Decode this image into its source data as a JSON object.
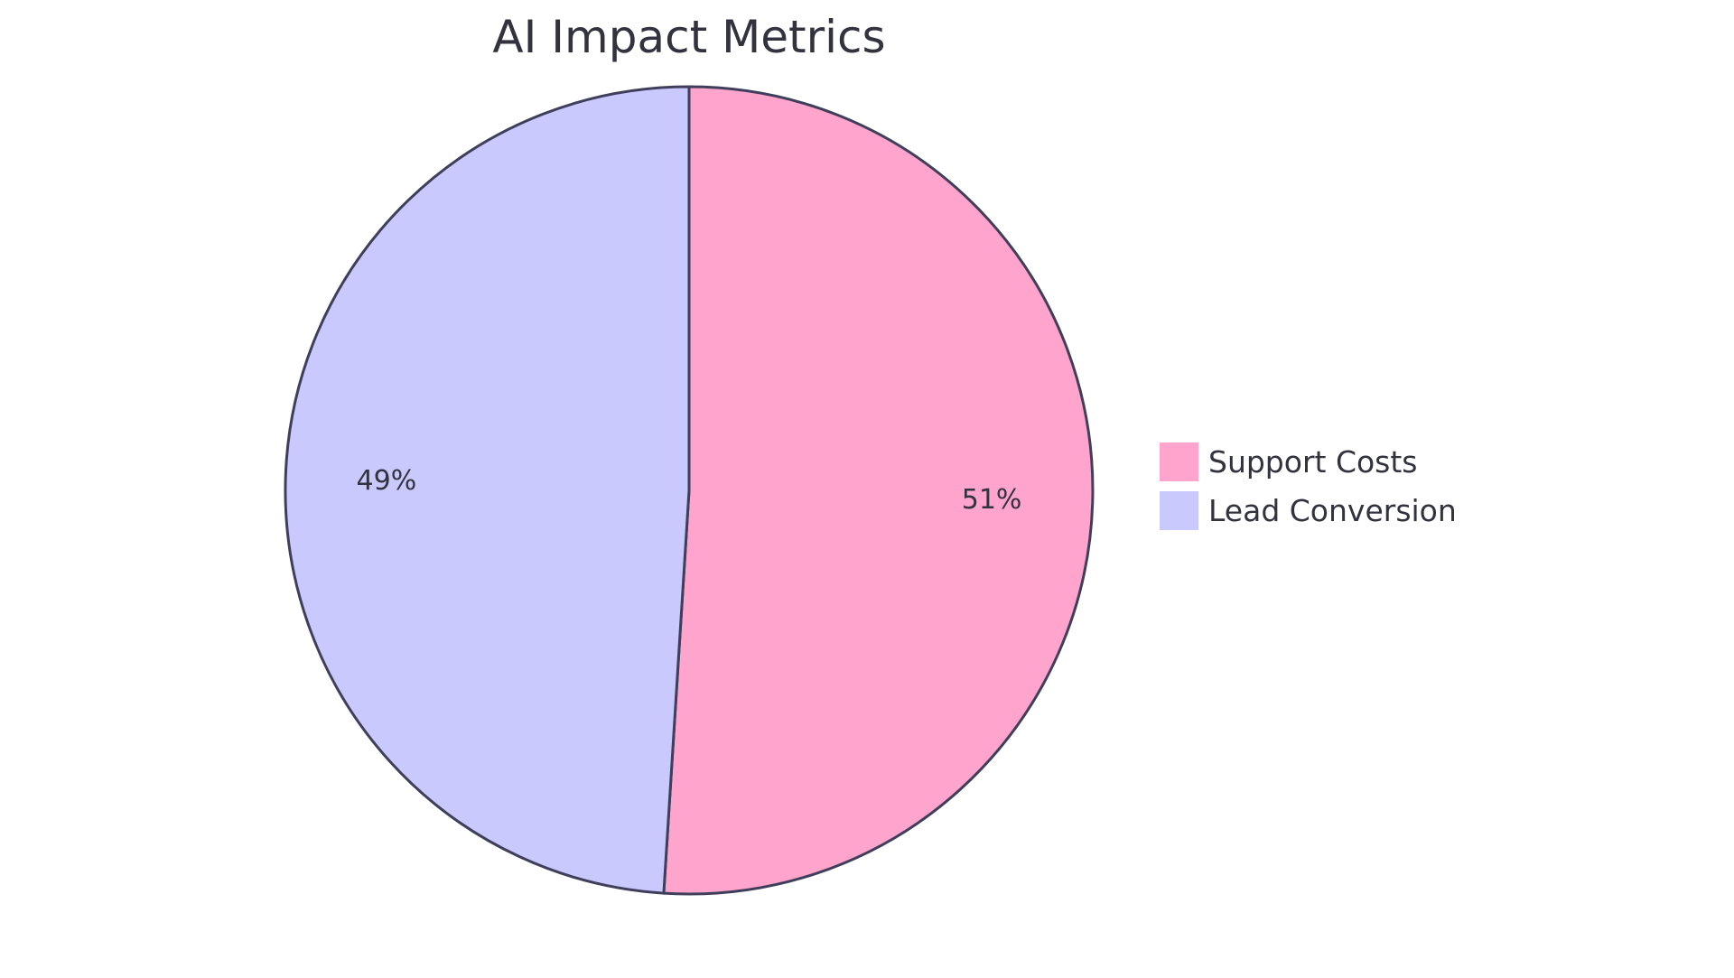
{
  "chart_data": {
    "type": "pie",
    "title": "AI Impact Metrics",
    "slices": [
      {
        "label": "Support Costs",
        "value": 51,
        "display": "51%",
        "color": "#FFA4CC"
      },
      {
        "label": "Lead Conversion",
        "value": 49,
        "display": "49%",
        "color": "#C9C9FD"
      }
    ],
    "stroke_color": "#3F3F5C",
    "legend_position": "right"
  }
}
